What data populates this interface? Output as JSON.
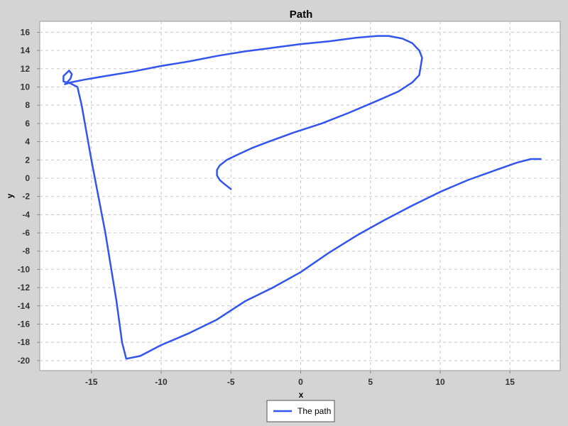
{
  "chart_data": {
    "type": "line",
    "title": "Path",
    "xlabel": "x",
    "ylabel": "y",
    "xlim": [
      -18.7,
      18.6
    ],
    "ylim": [
      -21.1,
      17.2
    ],
    "xticks": [
      -15,
      -10,
      -5,
      0,
      5,
      10,
      15
    ],
    "yticks": [
      16,
      14,
      12,
      10,
      8,
      6,
      4,
      2,
      0,
      -2,
      -4,
      -6,
      -8,
      -10,
      -12,
      -14,
      -16,
      -18,
      -20
    ],
    "grid": true,
    "legend_position": "bottom-center",
    "colors": {
      "page_background": "#d4d4d4",
      "plot_background": "#ffffff",
      "gridline": "#c8c8c8",
      "series": "#3355ee"
    },
    "series": [
      {
        "name": "The path",
        "x": [
          -5.0,
          -5.5,
          -5.8,
          -6.0,
          -6.0,
          -5.8,
          -5.3,
          -4.5,
          -3.5,
          -2.3,
          -0.5,
          1.5,
          3.5,
          5.5,
          7.0,
          8.0,
          8.5,
          8.7,
          8.5,
          8.0,
          7.3,
          6.3,
          5.5,
          4.0,
          2.0,
          0.0,
          -2.0,
          -4.0,
          -6.0,
          -8.0,
          -10.0,
          -12.0,
          -14.0,
          -15.5,
          -16.5,
          -16.9,
          -16.8,
          -16.5,
          -16.4,
          -16.6,
          -17.0,
          -17.0,
          -16.5,
          -16.0,
          -15.7,
          -15.0,
          -14.0,
          -13.2,
          -12.8,
          -12.5,
          -11.5,
          -10.0,
          -8.0,
          -6.0,
          -4.0,
          -2.0,
          0.0,
          2.0,
          4.0,
          6.0,
          8.0,
          10.0,
          12.0,
          14.0,
          15.5,
          16.5,
          17.2
        ],
        "y": [
          -1.2,
          -0.6,
          -0.2,
          0.3,
          0.9,
          1.4,
          2.0,
          2.6,
          3.3,
          4.0,
          5.0,
          6.0,
          7.2,
          8.5,
          9.5,
          10.5,
          11.3,
          13.2,
          14.0,
          14.8,
          15.3,
          15.6,
          15.6,
          15.4,
          15.0,
          14.7,
          14.3,
          13.9,
          13.4,
          12.8,
          12.3,
          11.7,
          11.2,
          10.8,
          10.5,
          10.3,
          10.4,
          10.9,
          11.4,
          11.8,
          11.2,
          10.6,
          10.4,
          10.0,
          8.0,
          2.0,
          -6.0,
          -13.5,
          -18.0,
          -19.8,
          -19.5,
          -18.3,
          -17.0,
          -15.5,
          -13.5,
          -12.0,
          -10.3,
          -8.2,
          -6.3,
          -4.6,
          -3.0,
          -1.5,
          -0.2,
          0.9,
          1.7,
          2.1,
          2.1
        ]
      }
    ]
  }
}
